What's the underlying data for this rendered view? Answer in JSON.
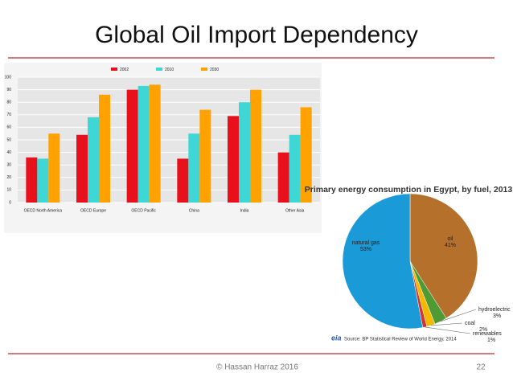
{
  "slide": {
    "title": "Global Oil Import Dependency",
    "footer": "© Hassan Harraz 2016",
    "page_number": "22"
  },
  "chart_data": [
    {
      "type": "bar",
      "categories": [
        "OECD North America",
        "OECD Europe",
        "OECD Pacific",
        "China",
        "India",
        "Other Asia"
      ],
      "series": [
        {
          "name": "2002",
          "color": "#e8101a",
          "values": [
            36,
            54,
            90,
            35,
            69,
            40
          ]
        },
        {
          "name": "2010",
          "color": "#3fd6d6",
          "values": [
            35,
            68,
            93,
            55,
            80,
            54
          ]
        },
        {
          "name": "2030",
          "color": "#ffa200",
          "values": [
            55,
            86,
            94,
            74,
            90,
            76
          ]
        }
      ],
      "ylim": [
        0,
        100
      ],
      "yticks": [
        0,
        10,
        20,
        30,
        40,
        50,
        60,
        70,
        80,
        90,
        100
      ],
      "grid": true
    },
    {
      "type": "pie",
      "title": "Primary energy consumption in Egypt, by fuel, 2013",
      "categories": [
        "oil",
        "hydroelectric",
        "coal",
        "renewables",
        "natural gas"
      ],
      "values": [
        41,
        3,
        2,
        1,
        53
      ],
      "value_labels": [
        "41%",
        "3%",
        "2%",
        "1%",
        "53%"
      ],
      "colors": [
        "#b5702c",
        "#4f9a34",
        "#f2b900",
        "#d8332a",
        "#1b9ad8"
      ],
      "logo": "eia",
      "source": "Source: BP Statistical Review of World Energy, 2014"
    }
  ]
}
